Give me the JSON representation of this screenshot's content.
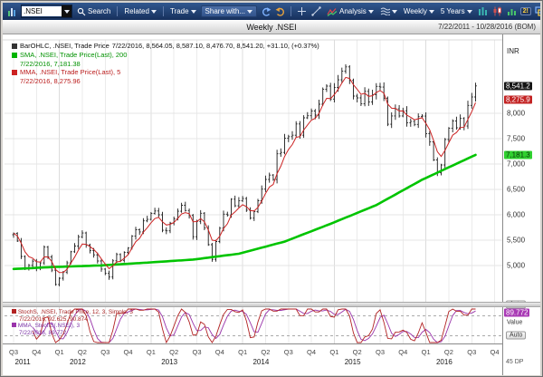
{
  "titlebar": {
    "symbol_value": ".NSEI",
    "search_label": "Search",
    "related_label": "Related",
    "trade_label": "Trade",
    "share_label": "Share with...",
    "analysis_label": "Analysis",
    "interval_label": "Weekly",
    "range_label": "5 Years",
    "alerts_badge": "2!",
    "menu_label": "Menu"
  },
  "header": {
    "title": "Weekly .NSEI",
    "date_range": "7/22/2011 - 10/28/2016 (BOM)"
  },
  "legend_main": {
    "ohlc_label": "BarOHLC, .NSEI, Trade Price",
    "ohlc_values": "7/22/2016, 8,564.05, 8,587.10, 8,476.70, 8,541.20, +31.10, (+0.37%)",
    "sma_label": "SMA, .NSEI, Trade Price(Last), 200",
    "sma_values": "7/22/2016, 7,181.38",
    "mma_label": "MMA, .NSEI, Trade Price(Last), 5",
    "mma_values": "7/22/2016, 8,275.96"
  },
  "legend_stoch": {
    "stoch_label": "StochS, .NSEI, Trade Price, 12, 3, Simple, 3",
    "stoch_values": "7/22/2016, 92.625, 90.874",
    "mma_label": "MMA, StochS(.NSEI), 3",
    "mma_values": "7/22/2016, 89.772"
  },
  "price_axis": {
    "currency": "INR",
    "ticks": [
      {
        "value": 8000,
        "label": "8,000"
      },
      {
        "value": 7500,
        "label": "7,500"
      },
      {
        "value": 7000,
        "label": "7,000"
      },
      {
        "value": 6500,
        "label": "6,500"
      },
      {
        "value": 6000,
        "label": "6,000"
      },
      {
        "value": 5500,
        "label": "5,500"
      },
      {
        "value": 5000,
        "label": "5,000"
      }
    ],
    "badges": [
      {
        "name": "last-price-badge",
        "value": 8541.2,
        "label": "8,541.2",
        "bg": "#141414",
        "fg": "#ffffff"
      },
      {
        "name": "mma-price-badge",
        "value": 8275.9,
        "label": "8,275.9",
        "bg": "#c32323",
        "fg": "#ffffff"
      },
      {
        "name": "sma-price-badge",
        "value": 7181.3,
        "label": "7,181.3",
        "bg": "#2fd12f",
        "fg": "#09300a"
      }
    ],
    "auto_label": "Auto"
  },
  "stoch_axis": {
    "value_label": "Value",
    "badge": {
      "value": 89.772,
      "label": "89.772",
      "bg": "#a93ab5",
      "fg": "#ffffff"
    },
    "auto_label": "Auto"
  },
  "footer": {
    "dp_label": "45 DP"
  },
  "colors": {
    "bars": "#1a1a1a",
    "sma": "#00c400",
    "mma": "#cc2222",
    "stoch": "#b22222",
    "stoch_mma": "#9933aa",
    "grid": "#e4e4e4",
    "grid_v": "#ebebeb"
  },
  "chart_data": [
    {
      "type": "ohlc",
      "title": "Weekly .NSEI",
      "ylabel": "INR",
      "ylim": [
        4300,
        9450
      ],
      "yticks": [
        5000,
        5500,
        6000,
        6500,
        7000,
        7500,
        8000
      ],
      "grid": true,
      "x_quarter_labels": [
        "Q3",
        "Q4",
        "Q1",
        "Q2",
        "Q3",
        "Q4",
        "Q1",
        "Q2",
        "Q3",
        "Q4",
        "Q1",
        "Q2",
        "Q3",
        "Q4",
        "Q1",
        "Q2",
        "Q3",
        "Q4",
        "Q1",
        "Q2",
        "Q3",
        "Q4"
      ],
      "x_year_labels": [
        {
          "label": "2011",
          "q_pos": 0.4
        },
        {
          "label": "2012",
          "q_pos": 2.8
        },
        {
          "label": "2013",
          "q_pos": 6.8
        },
        {
          "label": "2014",
          "q_pos": 10.8
        },
        {
          "label": "2015",
          "q_pos": 14.8
        },
        {
          "label": "2016",
          "q_pos": 18.8
        }
      ],
      "points_per_quarter": 6,
      "axis_index_span": 128,
      "series": [
        {
          "name": ".NSEI weekly close",
          "values": [
            5633,
            5482,
            5177,
            4944,
            5001,
            5084,
            4943,
            5050,
            5360,
            5168,
            4906,
            4624,
            4747,
            4866,
            5049,
            5269,
            5381,
            5564,
            5639,
            5404,
            5290,
            5209,
            5086,
            4928,
            4841,
            4770,
            5091,
            5215,
            5100,
            5258,
            5343,
            5577,
            5703,
            5660,
            5879,
            5908,
            6024,
            6074,
            5998,
            5693,
            5682,
            5834,
            5916,
            6069,
            6187,
            6083,
            5986,
            5566,
            5868,
            6029,
            5742,
            5408,
            5119,
            5471,
            5735,
            6012,
            5995,
            6307,
            6176,
            6278,
            6318,
            6090,
            5933,
            6063,
            6276,
            6504,
            6696,
            6782,
            6694,
            7203,
            7229,
            7511,
            7541,
            7568,
            7790,
            7568,
            7913,
            7954,
            8047,
            7965,
            8181,
            8477,
            8538,
            8283,
            8513,
            8661,
            8834,
            8917,
            8648,
            8342,
            8305,
            8191,
            8434,
            8225,
            8369,
            8533,
            8519,
            8301,
            7785,
            7949,
            8090,
            7950,
            8051,
            7812,
            7842,
            7782,
            7935,
            7946,
            7601,
            7437,
            7081,
            6826,
            6981,
            7485,
            7704,
            7850,
            7716,
            7899,
            7750,
            8157,
            8323,
            8541
          ]
        },
        {
          "name": "SMA 200-week",
          "anchors": [
            [
              0,
              4930
            ],
            [
              11,
              4970
            ],
            [
              23,
              5000
            ],
            [
              35,
              5055
            ],
            [
              47,
              5115
            ],
            [
              59,
              5230
            ],
            [
              71,
              5470
            ],
            [
              83,
              5820
            ],
            [
              95,
              6190
            ],
            [
              107,
              6690
            ],
            [
              121,
              7181
            ]
          ]
        }
      ],
      "last_bar": {
        "date": "7/22/2016",
        "open": 8564.05,
        "high": 8587.1,
        "low": 8476.7,
        "close": 8541.2,
        "change": "+31.10",
        "change_pct": "(+0.37%)"
      }
    },
    {
      "type": "line",
      "name": "StochS 12,3 Simple,3 with MMA 3",
      "ylim": [
        0,
        100
      ],
      "bands": [
        20,
        80
      ],
      "last_values": {
        "k": 92.625,
        "d": 90.874,
        "mma": 89.772
      }
    }
  ]
}
